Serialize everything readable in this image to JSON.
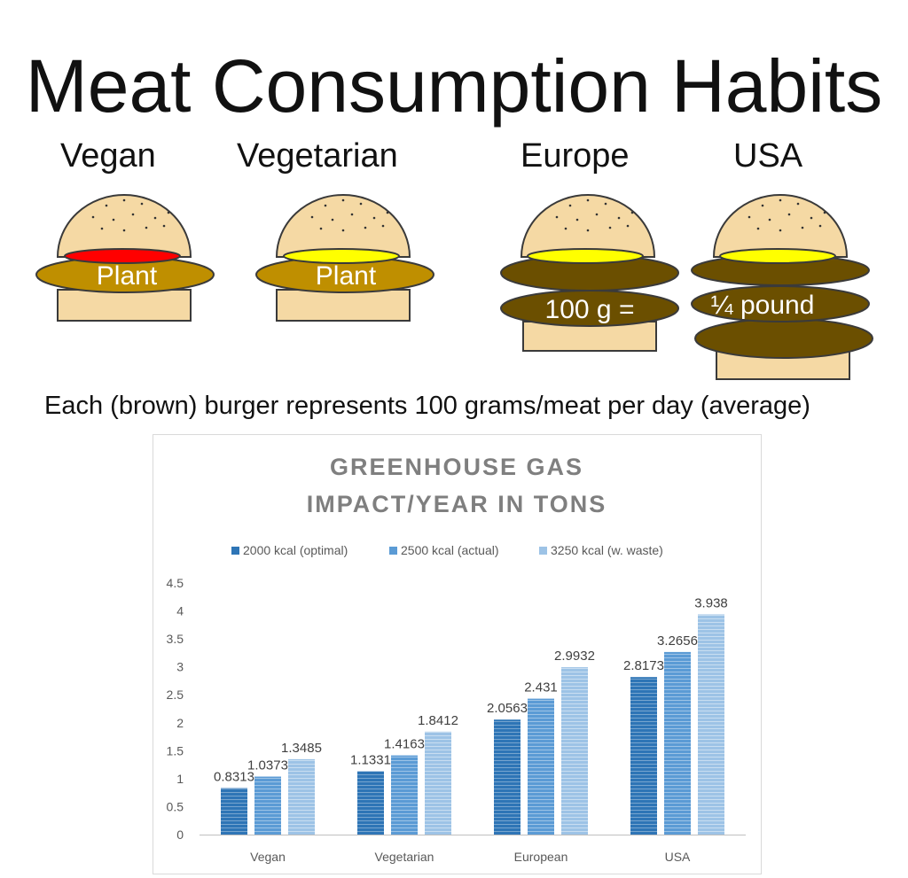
{
  "page": {
    "title": "Meat Consumption Habits",
    "categories": [
      "Vegan",
      "Vegetarian",
      "Europe",
      "USA"
    ],
    "burger_labels": {
      "vegan": "Plant",
      "vegetarian": "Plant",
      "europe": "100 g =",
      "usa": "¼ pound"
    },
    "caption": "Each (brown) burger represents 100 grams/meat per day (average)"
  },
  "colors": {
    "bun": "#f5d9a4",
    "meat": "#6b4f00",
    "plant_patty": "#bf8f00",
    "cheese": "#ffff00",
    "vegan_filling": "#ff0000",
    "series": [
      "#2e75b6",
      "#5b9bd5",
      "#9dc3e6"
    ]
  },
  "chart_data": {
    "type": "bar",
    "title": "GREENHOUSE GAS IMPACT/YEAR IN TONS",
    "title_lines": [
      "GREENHOUSE GAS",
      "IMPACT/YEAR IN TONS"
    ],
    "categories": [
      "Vegan",
      "Vegetarian",
      "European",
      "USA"
    ],
    "series": [
      {
        "name": "2000 kcal (optimal)",
        "values": [
          0.8313,
          1.1331,
          2.0563,
          2.8173
        ],
        "labels": [
          "0.8313",
          "1.1331",
          "2.0563",
          "2.8173"
        ]
      },
      {
        "name": "2500 kcal (actual)",
        "values": [
          1.0373,
          1.4163,
          2.431,
          3.2656
        ],
        "labels": [
          "1.0373",
          "1.4163",
          "2.431",
          "3.2656"
        ]
      },
      {
        "name": "3250 kcal (w. waste)",
        "values": [
          1.3485,
          1.8412,
          2.9932,
          3.938
        ],
        "labels": [
          "1.3485",
          "1.8412",
          "2.9932",
          "3.938"
        ]
      }
    ],
    "ylim": [
      0,
      4.5
    ],
    "yticks": [
      "0",
      "0.5",
      "1",
      "1.5",
      "2",
      "2.5",
      "3",
      "3.5",
      "4",
      "4.5"
    ],
    "xlabel": "",
    "ylabel": "",
    "grid": false,
    "legend": "top"
  }
}
